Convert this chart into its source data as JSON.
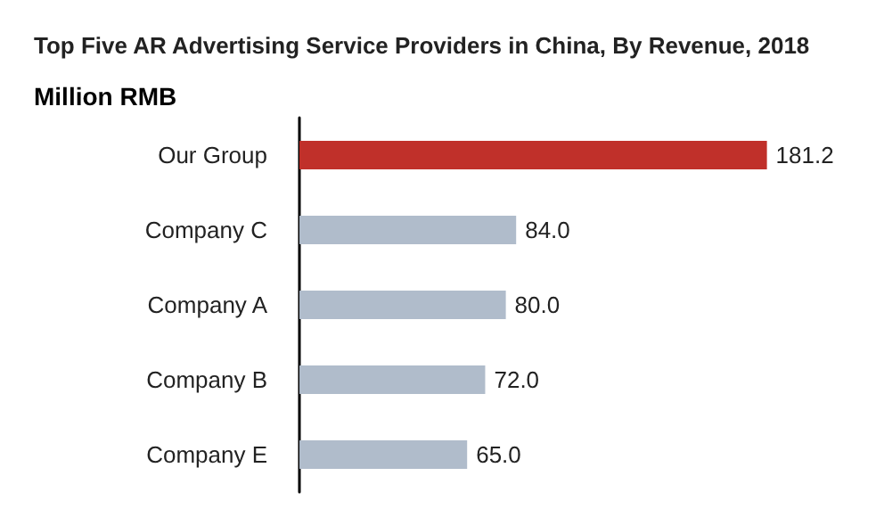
{
  "chart_data": {
    "type": "bar",
    "orientation": "horizontal",
    "title": "Top Five AR Advertising Service Providers in China, By Revenue, 2018",
    "subtitle": "Million RMB",
    "categories": [
      "Our Group",
      "Company C",
      "Company A",
      "Company B",
      "Company E"
    ],
    "values": [
      181.2,
      84.0,
      80.0,
      72.0,
      65.0
    ],
    "value_labels": [
      "181.2",
      "84.0",
      "80.0",
      "72.0",
      "65.0"
    ],
    "colors": [
      "#c0302a",
      "#b0bccb",
      "#b0bccb",
      "#b0bccb",
      "#b0bccb"
    ]
  }
}
